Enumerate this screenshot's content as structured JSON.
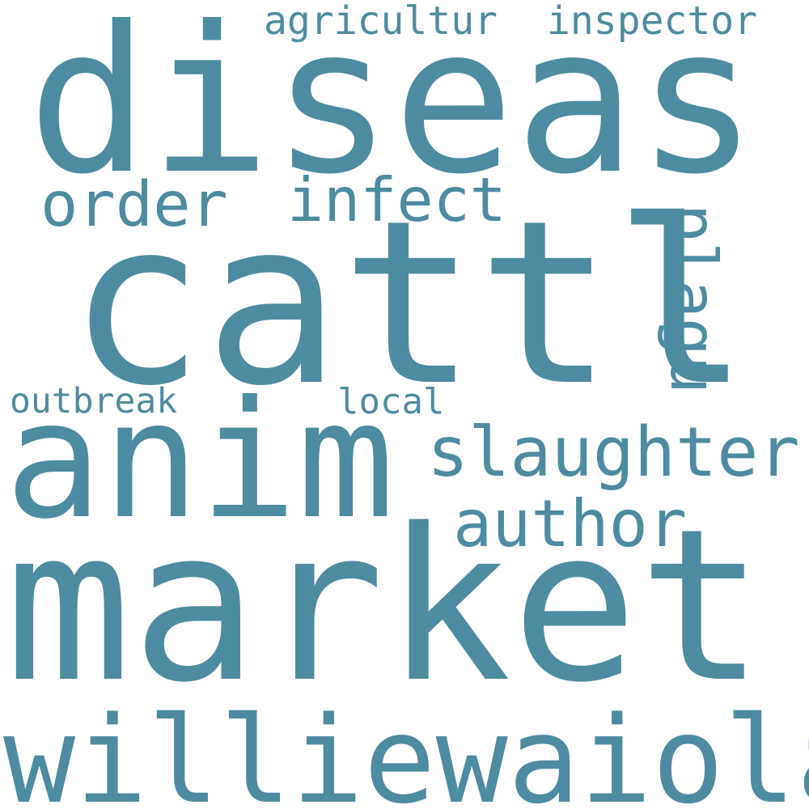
{
  "cloud": {
    "color": "#4d8ba1",
    "background": "#ffffff",
    "words": {
      "diseas": "diseas",
      "cattl": "cattl",
      "market": "market",
      "williewaiola": "williewaiola",
      "anim": "anim",
      "slaughter": "slaughter",
      "author": "author",
      "order": "order",
      "infect": "infect",
      "agricultur": "agricultur",
      "inspector": "inspector",
      "outbreak": "outbreak",
      "local": "local",
      "plagu": "plagu"
    }
  }
}
